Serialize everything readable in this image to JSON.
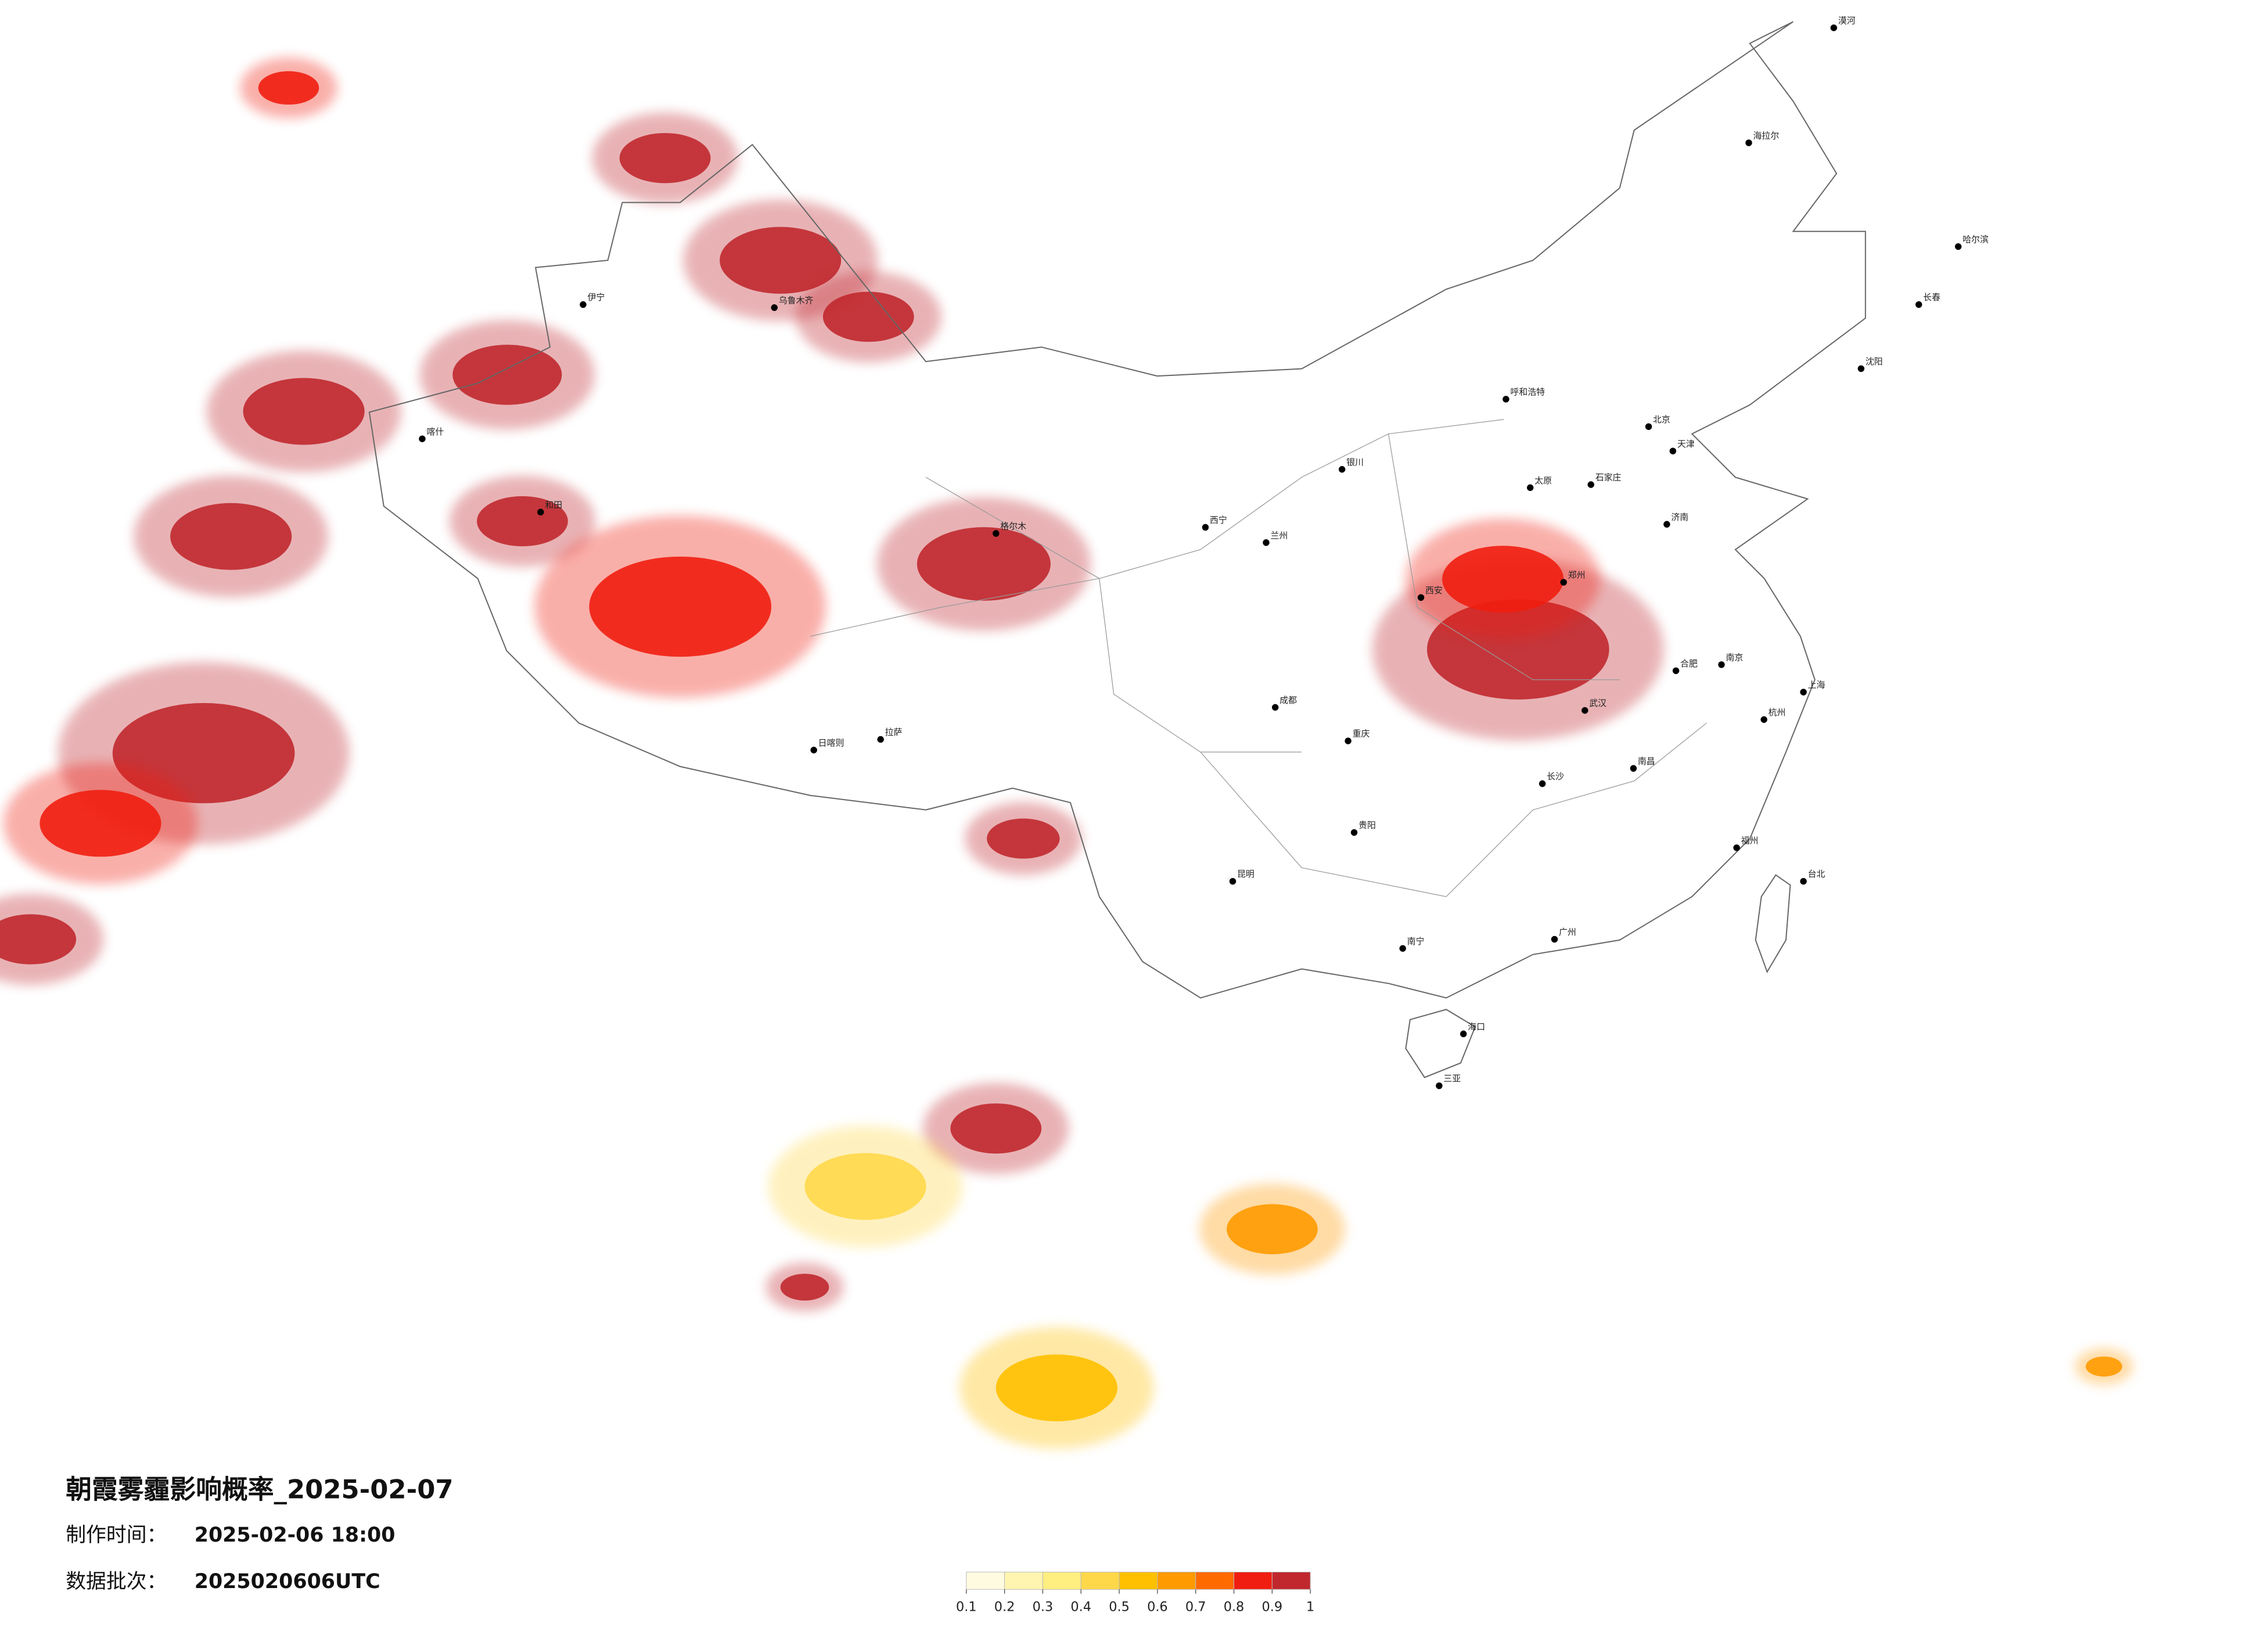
{
  "header": {
    "title": "朝霞雾霾影响概率_2025-02-07",
    "made_label": "制作时间：",
    "made_time": "2025-02-06 18:00",
    "batch_label": "数据批次：",
    "batch": "2025020606UTC"
  },
  "legend": {
    "ticks": [
      0.1,
      0.2,
      0.3,
      0.4,
      0.5,
      0.6,
      0.7,
      0.8,
      0.9,
      1
    ],
    "colors": [
      "#fffbe0",
      "#fff5b0",
      "#ffee80",
      "#ffd84a",
      "#ffc000",
      "#ff9a00",
      "#ff6a00",
      "#f01e10",
      "#c0282d"
    ]
  },
  "haze_regions": [
    {
      "lon": 84.0,
      "lat": 48.7,
      "level": 0.9,
      "r": 1.5
    },
    {
      "lon": 87.8,
      "lat": 45.35,
      "level": 0.9,
      "r": 2
    },
    {
      "lon": 90.7,
      "lat": 43.5,
      "level": 0.9,
      "r": 1.5
    },
    {
      "lon": 78.8,
      "lat": 41.6,
      "level": 0.9,
      "r": 1.8
    },
    {
      "lon": 72.1,
      "lat": 40.4,
      "level": 0.9,
      "r": 2
    },
    {
      "lon": 79.3,
      "lat": 36.8,
      "level": 0.9,
      "r": 1.5
    },
    {
      "lon": 69.7,
      "lat": 36.3,
      "level": 0.9,
      "r": 2
    },
    {
      "lon": 94.5,
      "lat": 35.4,
      "level": 1,
      "r": 2.2
    },
    {
      "lon": 84.5,
      "lat": 34.0,
      "level": 0.8,
      "r": 3
    },
    {
      "lon": 68.8,
      "lat": 29.2,
      "level": 1,
      "r": 3
    },
    {
      "lon": 65.4,
      "lat": 26.9,
      "level": 0.8,
      "r": 2
    },
    {
      "lon": 63.1,
      "lat": 23.1,
      "level": 0.9,
      "r": 1.5
    },
    {
      "lon": 95.8,
      "lat": 26.4,
      "level": 0.9,
      "r": 1.2
    },
    {
      "lon": 112.1,
      "lat": 32.6,
      "level": 1,
      "r": 3
    },
    {
      "lon": 111.6,
      "lat": 34.9,
      "level": 0.8,
      "r": 2
    },
    {
      "lon": 94.9,
      "lat": 16.9,
      "level": 0.9,
      "r": 1.5
    },
    {
      "lon": 90.6,
      "lat": 15.0,
      "level": 0.4,
      "r": 2
    },
    {
      "lon": 104.0,
      "lat": 13.6,
      "level": 0.6,
      "r": 1.5
    },
    {
      "lon": 88.6,
      "lat": 11.7,
      "level": 0.9,
      "r": 0.8
    },
    {
      "lon": 96.9,
      "lat": 8.4,
      "level": 0.5,
      "r": 2
    },
    {
      "lon": 131.4,
      "lat": 9.1,
      "level": 0.6,
      "r": 0.6
    },
    {
      "lon": 71.6,
      "lat": 51.0,
      "level": 0.8,
      "r": 1
    }
  ],
  "cities": [
    {
      "name": "北京",
      "lon": 116.4,
      "lat": 39.9
    },
    {
      "name": "天津",
      "lon": 117.2,
      "lat": 39.1
    },
    {
      "name": "石家庄",
      "lon": 114.5,
      "lat": 38.0
    },
    {
      "name": "太原",
      "lon": 112.5,
      "lat": 37.9
    },
    {
      "name": "呼和浩特",
      "lon": 111.7,
      "lat": 40.8
    },
    {
      "name": "沈阳",
      "lon": 123.4,
      "lat": 41.8
    },
    {
      "name": "长春",
      "lon": 125.3,
      "lat": 43.9
    },
    {
      "name": "哈尔滨",
      "lon": 126.6,
      "lat": 45.8
    },
    {
      "name": "上海",
      "lon": 121.5,
      "lat": 31.2
    },
    {
      "name": "南京",
      "lon": 118.8,
      "lat": 32.1
    },
    {
      "name": "杭州",
      "lon": 120.2,
      "lat": 30.3
    },
    {
      "name": "合肥",
      "lon": 117.3,
      "lat": 31.9
    },
    {
      "name": "福州",
      "lon": 119.3,
      "lat": 26.1
    },
    {
      "name": "南昌",
      "lon": 115.9,
      "lat": 28.7
    },
    {
      "name": "济南",
      "lon": 117.0,
      "lat": 36.7
    },
    {
      "name": "郑州",
      "lon": 113.6,
      "lat": 34.8
    },
    {
      "name": "武汉",
      "lon": 114.3,
      "lat": 30.6
    },
    {
      "name": "长沙",
      "lon": 112.9,
      "lat": 28.2
    },
    {
      "name": "广州",
      "lon": 113.3,
      "lat": 23.1
    },
    {
      "name": "南宁",
      "lon": 108.3,
      "lat": 22.8
    },
    {
      "name": "海口",
      "lon": 110.3,
      "lat": 20.0
    },
    {
      "name": "三亚",
      "lon": 109.5,
      "lat": 18.3
    },
    {
      "name": "重庆",
      "lon": 106.5,
      "lat": 29.6
    },
    {
      "name": "成都",
      "lon": 104.1,
      "lat": 30.7
    },
    {
      "name": "贵阳",
      "lon": 106.7,
      "lat": 26.6
    },
    {
      "name": "昆明",
      "lon": 102.7,
      "lat": 25.0
    },
    {
      "name": "拉萨",
      "lon": 91.1,
      "lat": 29.65
    },
    {
      "name": "西安",
      "lon": 108.9,
      "lat": 34.3
    },
    {
      "name": "兰州",
      "lon": 103.8,
      "lat": 36.1
    },
    {
      "name": "西宁",
      "lon": 101.8,
      "lat": 36.6
    },
    {
      "name": "银川",
      "lon": 106.3,
      "lat": 38.5
    },
    {
      "name": "乌鲁木齐",
      "lon": 87.6,
      "lat": 43.8
    },
    {
      "name": "喀什",
      "lon": 76.0,
      "lat": 39.5
    },
    {
      "name": "和田",
      "lon": 79.9,
      "lat": 37.1
    },
    {
      "name": "格尔木",
      "lon": 94.9,
      "lat": 36.4
    },
    {
      "name": "台北",
      "lon": 121.5,
      "lat": 25.0
    },
    {
      "name": "日喀则",
      "lon": 88.9,
      "lat": 29.3
    },
    {
      "name": "伊宁",
      "lon": 81.3,
      "lat": 43.9
    },
    {
      "name": "海拉尔",
      "lon": 119.7,
      "lat": 49.2
    },
    {
      "name": "漠河",
      "lon": 122.5,
      "lat": 52.97
    }
  ]
}
